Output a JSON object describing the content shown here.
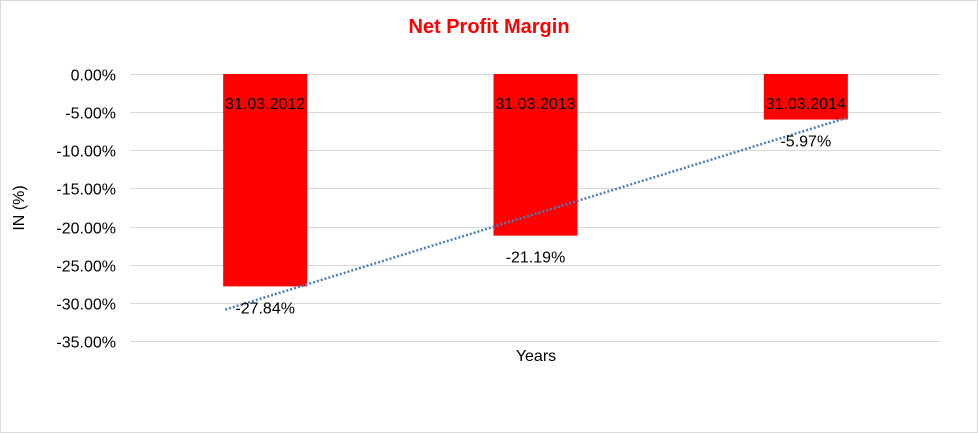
{
  "chart_data": {
    "type": "bar",
    "title": "Net Profit Margin",
    "xlabel": "Years",
    "ylabel": "IN (%)",
    "categories": [
      "31.03.2012",
      "31.03.2013",
      "31.03.2014"
    ],
    "series": [
      {
        "values": [
          -27.84,
          -21.19,
          -5.97
        ],
        "labels": [
          "-27.84%",
          "-21.19%",
          "-5.97%"
        ],
        "color": "#ff0000"
      }
    ],
    "trendline": {
      "type": "linear",
      "style": "dotted",
      "color": "#4a7ebb"
    },
    "ylim": [
      -35,
      0
    ],
    "yticks": [
      0,
      -5,
      -10,
      -15,
      -20,
      -25,
      -30,
      -35
    ],
    "ytick_labels": [
      "0.00%",
      "-5.00%",
      "-10.00%",
      "-15.00%",
      "-20.00%",
      "-25.00%",
      "-30.00%",
      "-35.00%"
    ],
    "grid": true,
    "legend": "none",
    "title_color": "#ff0000"
  }
}
